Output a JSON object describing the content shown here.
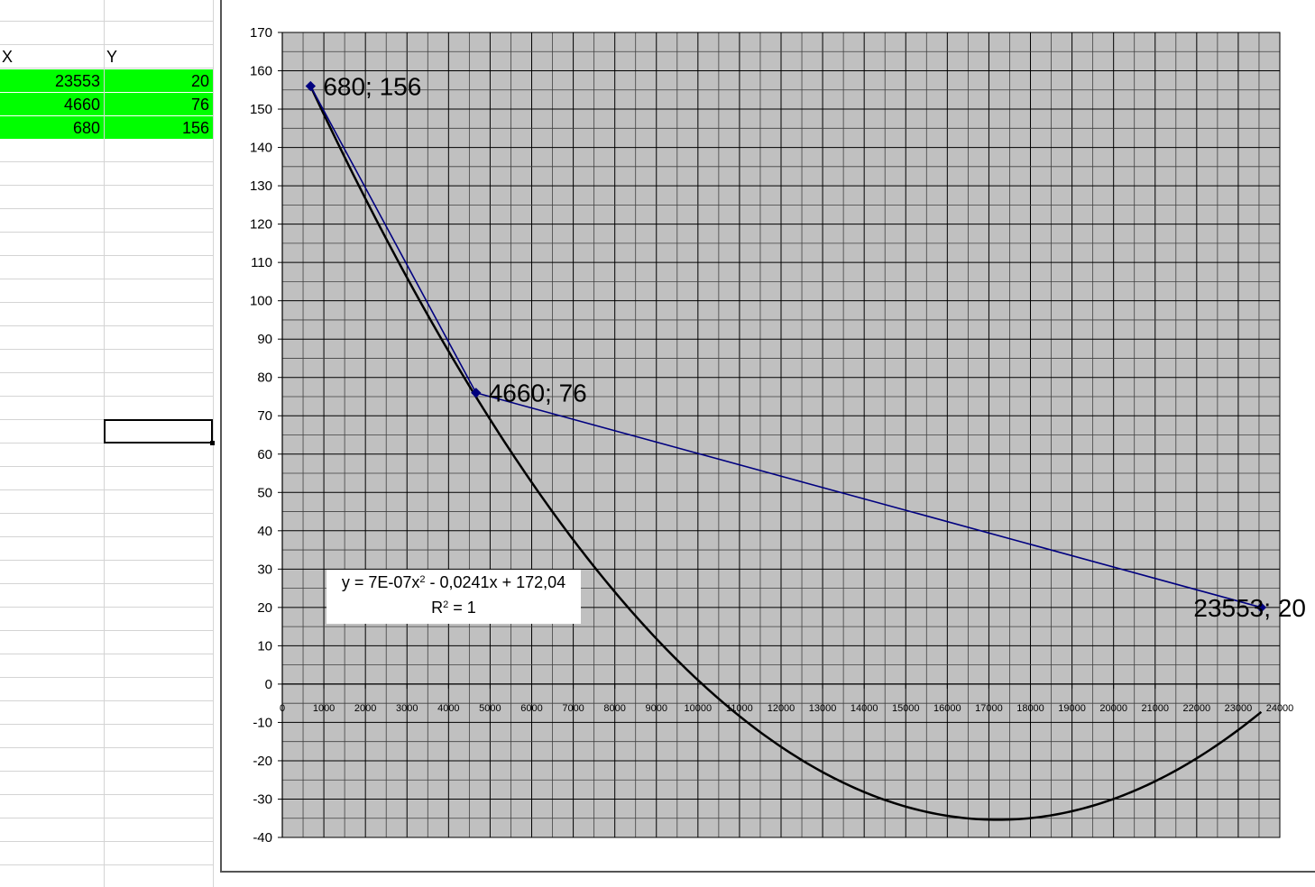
{
  "sheet": {
    "headers": {
      "x": "X",
      "y": "Y"
    },
    "rows": [
      {
        "x": "23553",
        "y": "20"
      },
      {
        "x": "4660",
        "y": "76"
      },
      {
        "x": "680",
        "y": "156"
      }
    ],
    "fill_color": "#00ff00"
  },
  "chart_data": {
    "type": "scatter",
    "x": [
      680,
      4660,
      23553
    ],
    "series": [
      {
        "values": [
          156,
          76,
          20
        ],
        "color": "#00007f",
        "style": "line-with-markers"
      }
    ],
    "point_labels": [
      "680; 156",
      "4660; 76",
      "23553; 20"
    ],
    "trendline": {
      "kind": "polynomial-2",
      "coefficients": [
        7e-07,
        -0.0241,
        172.04
      ],
      "equation_prefix": "y = 7E-07x",
      "equation_power": "2",
      "equation_suffix": " - 0,0241x + 172,04",
      "r2_prefix": "R",
      "r2_power": "2",
      "r2_suffix": " = 1",
      "color": "#000000"
    },
    "xlim": [
      0,
      24000
    ],
    "ylim": [
      -40,
      170
    ],
    "x_major": 1000,
    "y_major": 10,
    "x_tick_labels": [
      "0",
      "1000",
      "2000",
      "3000",
      "4000",
      "5000",
      "6000",
      "7000",
      "8000",
      "9000",
      "10000",
      "11000",
      "12000",
      "13000",
      "14000",
      "15000",
      "16000",
      "17000",
      "18000",
      "19000",
      "20000",
      "21000",
      "22000",
      "23000",
      "24000"
    ],
    "y_tick_labels": [
      "170",
      "160",
      "150",
      "140",
      "130",
      "120",
      "110",
      "100",
      "90",
      "80",
      "70",
      "60",
      "50",
      "40",
      "30",
      "20",
      "10",
      "0",
      "-10",
      "-20",
      "-30",
      "-40"
    ],
    "title": "",
    "xlabel": "",
    "ylabel": "",
    "grid": true,
    "plot_background": "#c0c0c0"
  }
}
